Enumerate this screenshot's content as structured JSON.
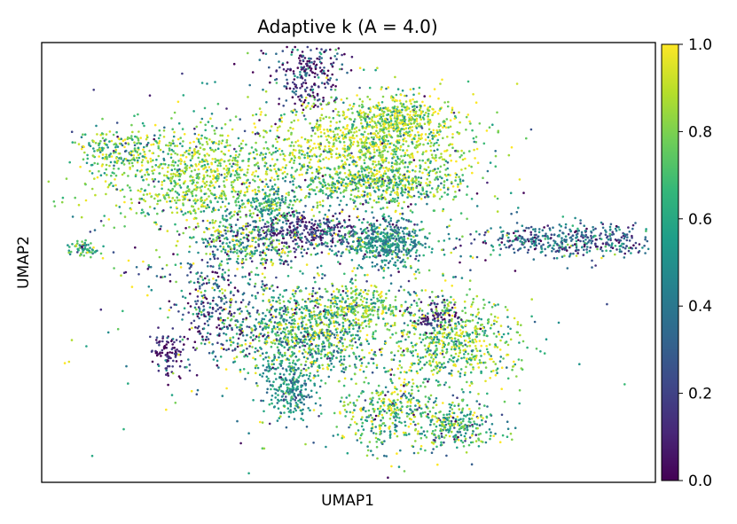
{
  "chart_data": {
    "type": "scatter",
    "title": "Adaptive k (A = 4.0)",
    "xlabel": "UMAP1",
    "ylabel": "UMAP2",
    "axis_ticks": false,
    "colorbar": {
      "colormap": "viridis",
      "range": [
        0.0,
        1.0
      ],
      "tick_labels": [
        "0.0",
        "0.2",
        "0.4",
        "0.6",
        "0.8",
        "1.0"
      ],
      "tick_values": [
        0.0,
        0.2,
        0.4,
        0.6,
        0.8,
        1.0
      ]
    },
    "viridis_stops": [
      "#440154",
      "#482878",
      "#3e4989",
      "#31688e",
      "#26828e",
      "#1f9e89",
      "#35b779",
      "#6ece58",
      "#b5de2b",
      "#fde725"
    ],
    "clusters": [
      {
        "name": "top-spike",
        "cx": 0.435,
        "cy": 0.93,
        "sx": 0.03,
        "sy": 0.045,
        "n": 260,
        "v": [
          0.15,
          0.25
        ]
      },
      {
        "name": "upper-left-arm",
        "cx": 0.26,
        "cy": 0.7,
        "sx": 0.09,
        "sy": 0.055,
        "n": 900,
        "v": [
          0.8,
          0.15
        ]
      },
      {
        "name": "left-tip",
        "cx": 0.12,
        "cy": 0.76,
        "sx": 0.035,
        "sy": 0.02,
        "n": 160,
        "v": [
          0.7,
          0.25
        ]
      },
      {
        "name": "upper-right-arm",
        "cx": 0.54,
        "cy": 0.77,
        "sx": 0.085,
        "sy": 0.05,
        "n": 900,
        "v": [
          0.85,
          0.15
        ]
      },
      {
        "name": "upper-right-tip",
        "cx": 0.59,
        "cy": 0.83,
        "sx": 0.04,
        "sy": 0.025,
        "n": 300,
        "v": [
          0.8,
          0.2
        ]
      },
      {
        "name": "upper-mid-band",
        "cx": 0.55,
        "cy": 0.68,
        "sx": 0.07,
        "sy": 0.025,
        "n": 500,
        "v": [
          0.72,
          0.2
        ]
      },
      {
        "name": "center-small",
        "cx": 0.37,
        "cy": 0.63,
        "sx": 0.02,
        "sy": 0.02,
        "n": 120,
        "v": [
          0.6,
          0.15
        ]
      },
      {
        "name": "center-dark",
        "cx": 0.43,
        "cy": 0.57,
        "sx": 0.05,
        "sy": 0.02,
        "n": 320,
        "v": [
          0.15,
          0.15
        ]
      },
      {
        "name": "center-right",
        "cx": 0.55,
        "cy": 0.55,
        "sx": 0.04,
        "sy": 0.02,
        "n": 260,
        "v": [
          0.55,
          0.2
        ]
      },
      {
        "name": "right-teal",
        "cx": 0.565,
        "cy": 0.54,
        "sx": 0.025,
        "sy": 0.03,
        "n": 220,
        "v": [
          0.45,
          0.12
        ]
      },
      {
        "name": "mid-left",
        "cx": 0.33,
        "cy": 0.55,
        "sx": 0.04,
        "sy": 0.03,
        "n": 260,
        "v": [
          0.6,
          0.25
        ]
      },
      {
        "name": "lower-center",
        "cx": 0.43,
        "cy": 0.34,
        "sx": 0.06,
        "sy": 0.05,
        "n": 900,
        "v": [
          0.65,
          0.25
        ]
      },
      {
        "name": "lower-center-right",
        "cx": 0.52,
        "cy": 0.4,
        "sx": 0.03,
        "sy": 0.025,
        "n": 200,
        "v": [
          0.8,
          0.15
        ]
      },
      {
        "name": "lower-right",
        "cx": 0.67,
        "cy": 0.32,
        "sx": 0.055,
        "sy": 0.05,
        "n": 650,
        "v": [
          0.75,
          0.2
        ]
      },
      {
        "name": "lower-right-top",
        "cx": 0.64,
        "cy": 0.38,
        "sx": 0.02,
        "sy": 0.02,
        "n": 80,
        "v": [
          0.1,
          0.1
        ]
      },
      {
        "name": "bottom-triangle",
        "cx": 0.57,
        "cy": 0.16,
        "sx": 0.05,
        "sy": 0.04,
        "n": 380,
        "v": [
          0.7,
          0.25
        ]
      },
      {
        "name": "bottom-right",
        "cx": 0.68,
        "cy": 0.13,
        "sx": 0.035,
        "sy": 0.025,
        "n": 240,
        "v": [
          0.65,
          0.25
        ]
      },
      {
        "name": "bottom-left-blob",
        "cx": 0.405,
        "cy": 0.21,
        "sx": 0.02,
        "sy": 0.03,
        "n": 220,
        "v": [
          0.5,
          0.15
        ]
      },
      {
        "name": "far-right-arm",
        "cx": 0.86,
        "cy": 0.55,
        "sx": 0.08,
        "sy": 0.018,
        "n": 450,
        "v": [
          0.35,
          0.2
        ]
      },
      {
        "name": "far-left",
        "cx": 0.07,
        "cy": 0.53,
        "sx": 0.012,
        "sy": 0.008,
        "n": 60,
        "v": [
          0.6,
          0.2
        ]
      },
      {
        "name": "left-diag",
        "cx": 0.28,
        "cy": 0.4,
        "sx": 0.03,
        "sy": 0.07,
        "n": 260,
        "v": [
          0.25,
          0.25
        ]
      },
      {
        "name": "left-low",
        "cx": 0.205,
        "cy": 0.3,
        "sx": 0.012,
        "sy": 0.03,
        "n": 90,
        "v": [
          0.1,
          0.1
        ]
      },
      {
        "name": "scatter-background",
        "cx": 0.42,
        "cy": 0.52,
        "sx": 0.17,
        "sy": 0.2,
        "n": 900,
        "v": [
          0.55,
          0.35
        ]
      }
    ]
  }
}
